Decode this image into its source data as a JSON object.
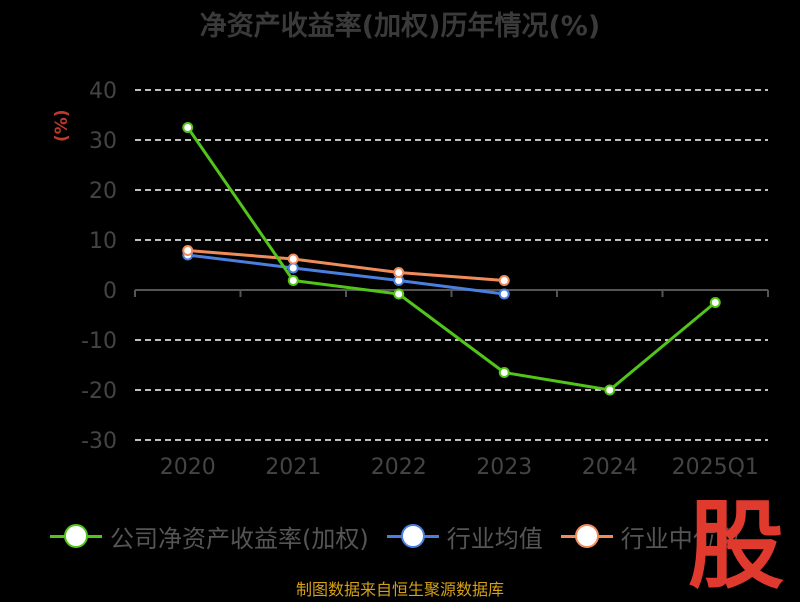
{
  "chart_data": {
    "type": "line",
    "title": "净资产收益率(加权)历年情况(%)",
    "ylabel": "(%)",
    "categories": [
      "2020",
      "2021",
      "2022",
      "2023",
      "2024",
      "2025Q1"
    ],
    "ylim": [
      -30,
      40
    ],
    "yticks": [
      40,
      30,
      20,
      10,
      0,
      -10,
      -20,
      -30
    ],
    "grid": true,
    "legend_position": "bottom",
    "series": [
      {
        "name": "公司净资产收益率(加权)",
        "color": "#52c41a",
        "values": [
          32.5,
          1.9,
          -0.8,
          -16.5,
          -20.0,
          -2.5
        ]
      },
      {
        "name": "行业均值",
        "color": "#4a7fe0",
        "values": [
          7.0,
          4.4,
          1.9,
          -0.8,
          null,
          null
        ]
      },
      {
        "name": "行业中位数",
        "color": "#f08c5a",
        "values": [
          7.9,
          6.2,
          3.5,
          1.9,
          null,
          null
        ]
      }
    ]
  },
  "legend": {
    "item1": "公司净资产收益率(加权)",
    "item2": "行业均值",
    "item3": "行业中位数"
  },
  "source": "制图数据来自恒生聚源数据库",
  "logo_text": "股"
}
